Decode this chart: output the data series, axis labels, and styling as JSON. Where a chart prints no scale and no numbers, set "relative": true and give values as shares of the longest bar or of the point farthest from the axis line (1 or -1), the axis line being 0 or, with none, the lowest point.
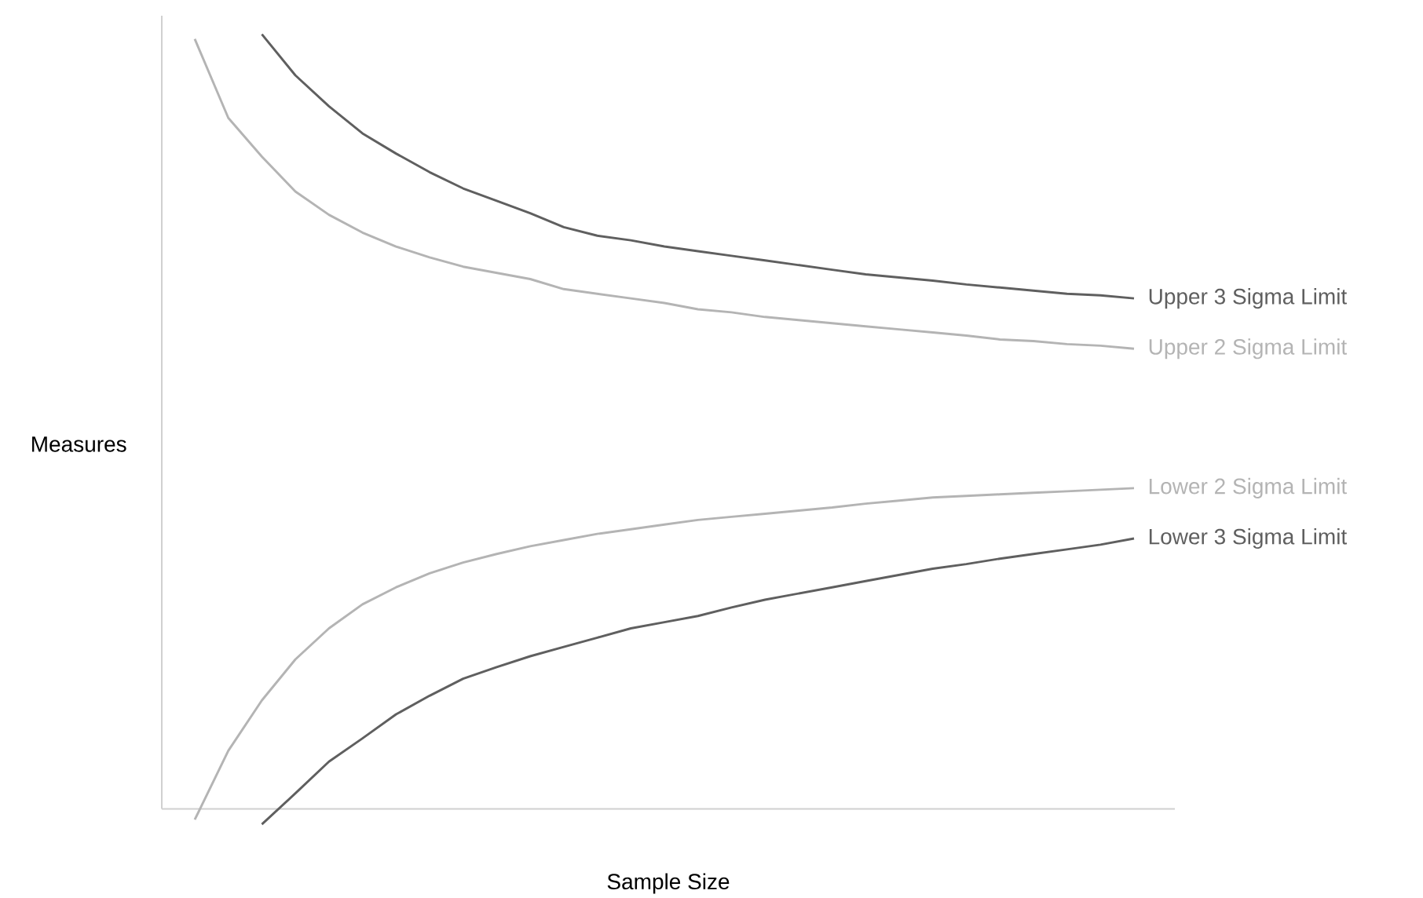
{
  "chart_data": {
    "type": "line",
    "xlabel": "Sample Size",
    "ylabel": "Measures",
    "relative": true,
    "categories": [
      null,
      null,
      null,
      null,
      null,
      null,
      null,
      null,
      null,
      null,
      null,
      null,
      null,
      null,
      null,
      null,
      null,
      null,
      null,
      null,
      null,
      null,
      null,
      null,
      null,
      null,
      null,
      null,
      null
    ],
    "series": [
      {
        "name": "Upper 3 Sigma Limit",
        "color": "#5f5f5f",
        "values": [
          null,
          null,
          1.0,
          0.947,
          0.907,
          0.872,
          0.846,
          0.822,
          0.801,
          0.785,
          0.769,
          0.751,
          0.74,
          0.734,
          0.726,
          0.72,
          0.714,
          0.708,
          0.702,
          0.696,
          0.69,
          0.686,
          0.682,
          0.677,
          0.673,
          0.669,
          0.665,
          0.663,
          0.659
        ]
      },
      {
        "name": "Upper 2 Sigma Limit",
        "color": "#b4b4b4",
        "values": [
          0.994,
          0.892,
          0.842,
          0.797,
          0.767,
          0.744,
          0.726,
          0.712,
          0.7,
          0.692,
          0.684,
          0.671,
          0.665,
          0.659,
          0.653,
          0.645,
          0.641,
          0.635,
          0.631,
          0.627,
          0.623,
          0.619,
          0.615,
          0.611,
          0.606,
          0.604,
          0.6,
          0.598,
          0.594
        ]
      },
      {
        "name": "Lower 2 Sigma Limit",
        "color": "#b4b4b4",
        "values": [
          -0.014,
          0.075,
          0.14,
          0.193,
          0.233,
          0.264,
          0.286,
          0.304,
          0.318,
          0.329,
          0.339,
          0.347,
          0.355,
          0.361,
          0.367,
          0.373,
          0.377,
          0.381,
          0.385,
          0.389,
          0.394,
          0.398,
          0.402,
          0.404,
          0.406,
          0.408,
          0.41,
          0.412,
          0.414
        ]
      },
      {
        "name": "Lower 3 Sigma Limit",
        "color": "#5f5f5f",
        "values": [
          null,
          null,
          -0.02,
          0.02,
          0.061,
          0.091,
          0.122,
          0.146,
          0.168,
          0.183,
          0.197,
          0.209,
          0.221,
          0.233,
          0.241,
          0.249,
          0.26,
          0.27,
          0.278,
          0.286,
          0.294,
          0.302,
          0.31,
          0.316,
          0.323,
          0.329,
          0.335,
          0.341,
          0.349
        ]
      }
    ]
  }
}
